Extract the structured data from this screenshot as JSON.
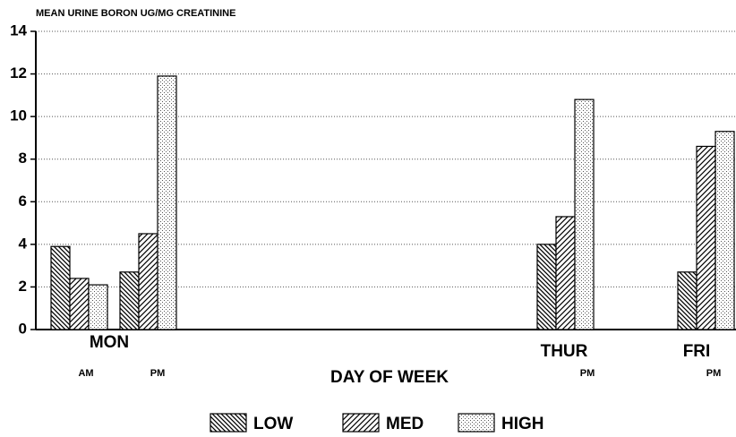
{
  "chart_data": {
    "type": "bar",
    "title": "MEAN URINE BORON UG/MG CREATININE",
    "x_label": "DAY OF WEEK",
    "day_labels": [
      "MON",
      null,
      "THUR",
      "FRI"
    ],
    "categories": [
      "AM",
      "PM",
      "PM",
      "PM"
    ],
    "series": [
      {
        "name": "LOW",
        "color": "#000000",
        "hatch": "backslash",
        "values": [
          3.9,
          2.7,
          4.0,
          2.7
        ]
      },
      {
        "name": "MED",
        "color": "#000000",
        "hatch": "slash",
        "values": [
          2.4,
          4.5,
          5.3,
          8.6
        ]
      },
      {
        "name": "HIGH",
        "color": "#000000",
        "hatch": "dots",
        "values": [
          2.1,
          11.9,
          10.8,
          9.3
        ]
      }
    ],
    "ylim": [
      0,
      14
    ],
    "yticks": [
      0,
      2,
      4,
      6,
      8,
      10,
      12,
      14
    ],
    "grid": true,
    "legend": "bottom"
  }
}
